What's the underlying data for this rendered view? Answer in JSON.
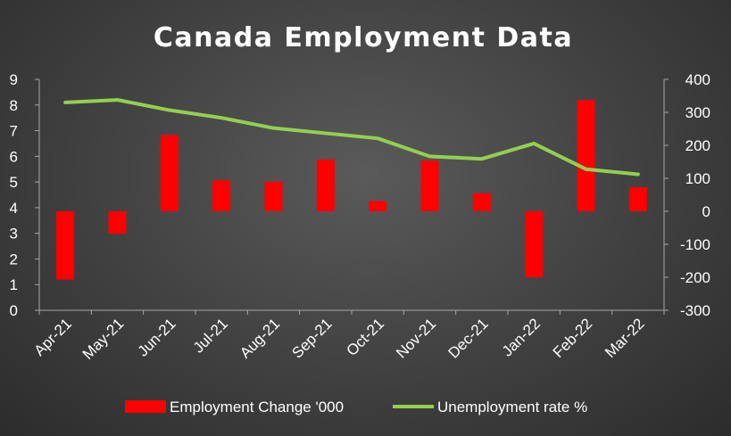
{
  "chart_data": {
    "type": "bar",
    "title": "Canada Employment Data",
    "categories": [
      "Apr-21",
      "May-21",
      "Jun-21",
      "Jul-21",
      "Aug-21",
      "Sep-21",
      "Oct-21",
      "Nov-21",
      "Dec-21",
      "Jan-22",
      "Feb-22",
      "Mar-22"
    ],
    "series": [
      {
        "name": "Employment Change '000",
        "type": "bar",
        "axis": "right",
        "color": "#ff0000",
        "values": [
          -207,
          -68,
          231,
          94,
          90,
          157,
          31,
          154,
          55,
          -200,
          337,
          73
        ]
      },
      {
        "name": "Unemployment rate %",
        "type": "line",
        "axis": "left",
        "color": "#92d050",
        "values": [
          8.1,
          8.2,
          7.8,
          7.5,
          7.1,
          6.9,
          6.7,
          6.0,
          5.9,
          6.5,
          5.5,
          5.3
        ]
      }
    ],
    "left_axis": {
      "ylim": [
        0,
        9
      ],
      "ticks": [
        "0",
        "1",
        "2",
        "3",
        "4",
        "5",
        "6",
        "7",
        "8",
        "9"
      ]
    },
    "right_axis": {
      "ylim": [
        -300,
        400
      ],
      "ticks": [
        "-300",
        "-200",
        "-100",
        "0",
        "100",
        "200",
        "300",
        "400"
      ]
    },
    "grid": false,
    "legend_position": "bottom"
  }
}
